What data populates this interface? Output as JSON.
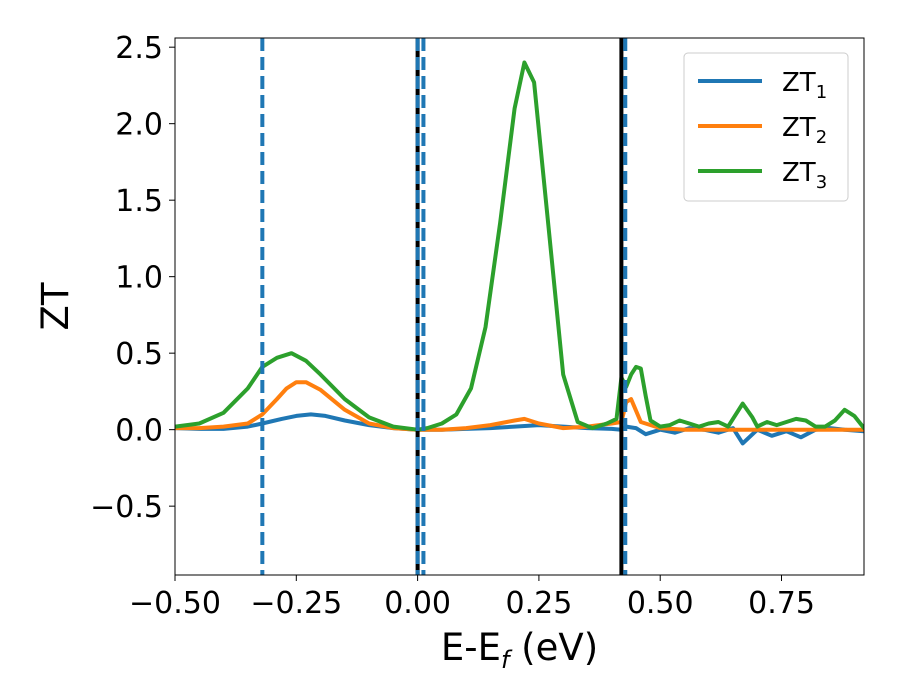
{
  "chart_data": {
    "type": "line",
    "xlabel": "E-E",
    "xlabel_sub": "f",
    "xlabel_suffix": " (eV)",
    "ylabel": "ZT",
    "xlim": [
      -0.5,
      0.92
    ],
    "ylim": [
      -0.95,
      2.56
    ],
    "xticks": [
      -0.5,
      -0.25,
      0.0,
      0.25,
      0.5,
      0.75
    ],
    "xtick_labels": [
      "−0.50",
      "−0.25",
      "0.00",
      "0.25",
      "0.50",
      "0.75"
    ],
    "yticks": [
      -0.5,
      0.0,
      0.5,
      1.0,
      1.5,
      2.0,
      2.5
    ],
    "ytick_labels": [
      "−0.5",
      "0.0",
      "0.5",
      "1.0",
      "1.5",
      "2.0",
      "2.5"
    ],
    "grid": false,
    "legend_position": "top-right",
    "vlines_solid": [
      0.0,
      0.42
    ],
    "vlines_dashed": [
      -0.32,
      0.0,
      0.012,
      0.428
    ],
    "vline_solid_color": "#000000",
    "vline_dashed_color": "#1f77b4",
    "series": [
      {
        "name": "ZT",
        "name_sub": "1",
        "color": "#1f77b4",
        "x": [
          -0.5,
          -0.45,
          -0.4,
          -0.35,
          -0.32,
          -0.28,
          -0.25,
          -0.22,
          -0.19,
          -0.15,
          -0.1,
          -0.05,
          0.0,
          0.05,
          0.1,
          0.15,
          0.2,
          0.25,
          0.3,
          0.35,
          0.4,
          0.42,
          0.43,
          0.45,
          0.47,
          0.5,
          0.53,
          0.56,
          0.59,
          0.62,
          0.65,
          0.67,
          0.7,
          0.73,
          0.76,
          0.79,
          0.82,
          0.85,
          0.88,
          0.92
        ],
        "y": [
          0.01,
          0.005,
          0.005,
          0.02,
          0.04,
          0.07,
          0.09,
          0.1,
          0.09,
          0.06,
          0.03,
          0.01,
          0.0,
          0.0,
          0.005,
          0.01,
          0.02,
          0.03,
          0.02,
          0.01,
          0.005,
          0.0,
          0.02,
          0.01,
          -0.03,
          0.0,
          -0.02,
          0.01,
          0.0,
          -0.02,
          0.01,
          -0.09,
          0.0,
          -0.04,
          -0.01,
          -0.05,
          0.0,
          0.01,
          0.0,
          -0.01
        ]
      },
      {
        "name": "ZT",
        "name_sub": "2",
        "color": "#ff7f0e",
        "x": [
          -0.5,
          -0.45,
          -0.4,
          -0.35,
          -0.32,
          -0.29,
          -0.27,
          -0.25,
          -0.23,
          -0.2,
          -0.15,
          -0.1,
          -0.05,
          0.0,
          0.05,
          0.1,
          0.15,
          0.2,
          0.22,
          0.25,
          0.3,
          0.35,
          0.4,
          0.42,
          0.43,
          0.44,
          0.46,
          0.5,
          0.55,
          0.6,
          0.65,
          0.7,
          0.75,
          0.8,
          0.85,
          0.92
        ],
        "y": [
          0.01,
          0.01,
          0.02,
          0.04,
          0.1,
          0.2,
          0.27,
          0.31,
          0.31,
          0.26,
          0.13,
          0.04,
          0.01,
          0.0,
          0.0,
          0.01,
          0.03,
          0.06,
          0.07,
          0.04,
          0.01,
          0.02,
          0.04,
          0.05,
          0.18,
          0.2,
          0.05,
          0.01,
          0.0,
          0.0,
          0.0,
          0.0,
          0.0,
          0.0,
          0.0,
          0.0
        ]
      },
      {
        "name": "ZT",
        "name_sub": "3",
        "color": "#2ca02c",
        "x": [
          -0.5,
          -0.45,
          -0.4,
          -0.35,
          -0.32,
          -0.29,
          -0.26,
          -0.23,
          -0.2,
          -0.15,
          -0.1,
          -0.05,
          0.0,
          0.02,
          0.05,
          0.08,
          0.11,
          0.14,
          0.17,
          0.2,
          0.22,
          0.24,
          0.27,
          0.3,
          0.33,
          0.36,
          0.39,
          0.41,
          0.42,
          0.43,
          0.44,
          0.45,
          0.46,
          0.47,
          0.48,
          0.5,
          0.52,
          0.54,
          0.56,
          0.58,
          0.6,
          0.62,
          0.64,
          0.66,
          0.67,
          0.69,
          0.7,
          0.72,
          0.74,
          0.76,
          0.78,
          0.8,
          0.82,
          0.84,
          0.86,
          0.88,
          0.9,
          0.92
        ],
        "y": [
          0.02,
          0.04,
          0.11,
          0.27,
          0.41,
          0.47,
          0.5,
          0.45,
          0.36,
          0.2,
          0.08,
          0.02,
          0.0,
          0.01,
          0.04,
          0.1,
          0.27,
          0.67,
          1.35,
          2.1,
          2.4,
          2.27,
          1.32,
          0.36,
          0.05,
          0.01,
          0.04,
          0.07,
          0.34,
          0.28,
          0.36,
          0.41,
          0.4,
          0.22,
          0.06,
          0.02,
          0.03,
          0.06,
          0.04,
          0.02,
          0.04,
          0.05,
          0.02,
          0.12,
          0.17,
          0.08,
          0.02,
          0.05,
          0.03,
          0.05,
          0.07,
          0.06,
          0.02,
          0.02,
          0.06,
          0.13,
          0.09,
          0.01
        ]
      }
    ]
  }
}
